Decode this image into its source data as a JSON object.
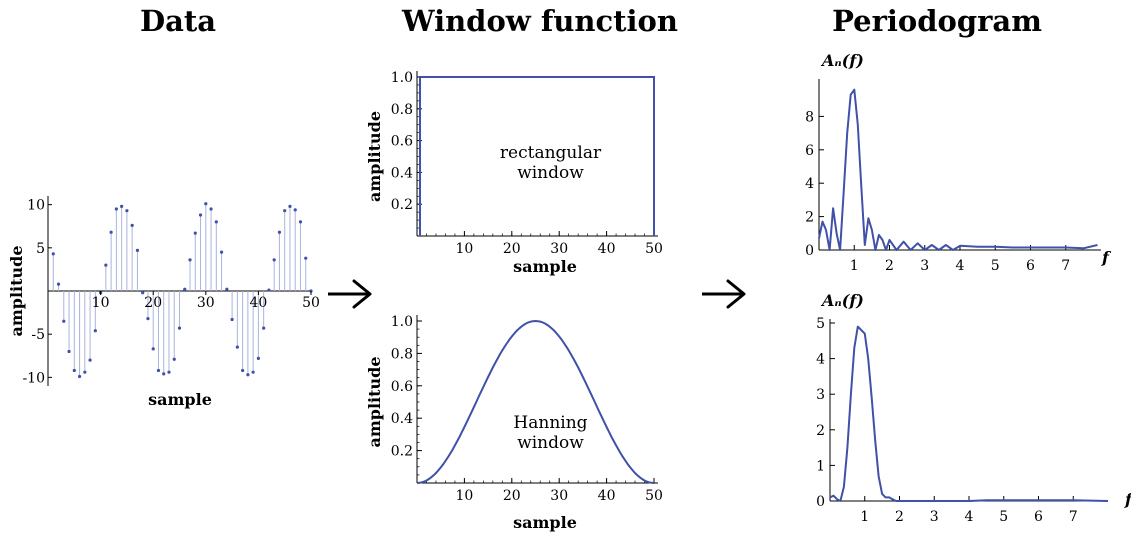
{
  "headings": {
    "data": "Data",
    "window": "Window function",
    "periodogram": "Periodogram"
  },
  "icons": {
    "arrow": "right-arrow-icon"
  },
  "chart_data": [
    {
      "id": "data",
      "type": "scatter",
      "style": "stem",
      "title": "",
      "xlabel": "sample",
      "ylabel": "amplitude",
      "xlim": [
        0,
        50
      ],
      "ylim": [
        -11,
        11
      ],
      "xticks": [
        10,
        20,
        30,
        40,
        50
      ],
      "yticks": [
        10,
        5,
        -5,
        -10
      ],
      "xtick_labels": [
        "10",
        "20",
        "30",
        "40",
        "50"
      ],
      "ytick_labels": [
        "10",
        "5",
        "-5",
        "-10"
      ],
      "color": "#3f51a8",
      "x": [
        1,
        2,
        3,
        4,
        5,
        6,
        7,
        8,
        9,
        10,
        11,
        12,
        13,
        14,
        15,
        16,
        17,
        18,
        19,
        20,
        21,
        22,
        23,
        24,
        25,
        26,
        27,
        28,
        29,
        30,
        31,
        32,
        33,
        34,
        35,
        36,
        37,
        38,
        39,
        40,
        41,
        42,
        43,
        44,
        45,
        46,
        47,
        48,
        49,
        50
      ],
      "y": [
        4.3,
        0.8,
        -3.5,
        -7.0,
        -9.2,
        -9.9,
        -9.4,
        -8.0,
        -4.6,
        -0.2,
        3.0,
        6.8,
        9.5,
        9.8,
        9.3,
        7.6,
        4.7,
        -0.2,
        -3.2,
        -6.7,
        -9.2,
        -9.6,
        -9.4,
        -7.9,
        -4.3,
        0.2,
        3.6,
        6.7,
        8.8,
        10.1,
        9.5,
        8.0,
        4.5,
        0.2,
        -3.3,
        -6.5,
        -9.2,
        -9.7,
        -9.4,
        -7.8,
        -4.3,
        0.1,
        3.6,
        6.8,
        9.3,
        9.8,
        9.4,
        8.0,
        3.8,
        0.0
      ]
    },
    {
      "id": "rect",
      "type": "line",
      "title": "",
      "xlabel": "sample",
      "ylabel": "amplitude",
      "xlim": [
        0,
        50
      ],
      "ylim": [
        0,
        1.0
      ],
      "xticks": [
        10,
        20,
        30,
        40,
        50
      ],
      "yticks": [
        0.2,
        0.4,
        0.6,
        0.8,
        1.0
      ],
      "xtick_labels": [
        "10",
        "20",
        "30",
        "40",
        "50"
      ],
      "ytick_labels": [
        "0.2",
        "0.4",
        "0.6",
        "0.8",
        "1.0"
      ],
      "annotation": [
        "rectangular",
        "window"
      ],
      "color": "#3f51a8",
      "x": [
        0,
        0,
        50,
        50
      ],
      "y": [
        0,
        1,
        1,
        0
      ]
    },
    {
      "id": "hann",
      "type": "line",
      "title": "",
      "xlabel": "sample",
      "ylabel": "amplitude",
      "xlim": [
        0,
        50
      ],
      "ylim": [
        0,
        1.0
      ],
      "xticks": [
        10,
        20,
        30,
        40,
        50
      ],
      "yticks": [
        0.2,
        0.4,
        0.6,
        0.8,
        1.0
      ],
      "xtick_labels": [
        "10",
        "20",
        "30",
        "40",
        "50"
      ],
      "ytick_labels": [
        "0.2",
        "0.4",
        "0.6",
        "0.8",
        "1.0"
      ],
      "annotation": [
        "Hanning",
        "window"
      ],
      "color": "#3f51a8",
      "x": [
        0,
        2.5,
        5,
        7.5,
        10,
        12.5,
        15,
        17.5,
        20,
        22.5,
        25,
        27.5,
        30,
        32.5,
        35,
        37.5,
        40,
        42.5,
        45,
        47.5,
        50
      ],
      "y": [
        0,
        0.02,
        0.1,
        0.21,
        0.35,
        0.5,
        0.65,
        0.79,
        0.9,
        0.98,
        1.0,
        0.98,
        0.9,
        0.79,
        0.65,
        0.5,
        0.35,
        0.21,
        0.1,
        0.02,
        0
      ]
    },
    {
      "id": "pgram_rect",
      "type": "line",
      "title": "",
      "xlabel": "f",
      "ylabel": "Aₙ(f)",
      "xlim": [
        0,
        8
      ],
      "ylim": [
        0,
        10
      ],
      "xticks": [
        1,
        2,
        3,
        4,
        5,
        6,
        7
      ],
      "yticks": [
        0,
        2,
        4,
        6,
        8
      ],
      "xtick_labels": [
        "1",
        "2",
        "3",
        "4",
        "5",
        "6",
        "7"
      ],
      "ytick_labels": [
        "0",
        "2",
        "4",
        "6",
        "8"
      ],
      "color": "#3f51a8",
      "x": [
        0,
        0.1,
        0.2,
        0.3,
        0.4,
        0.5,
        0.6,
        0.7,
        0.8,
        0.9,
        1.0,
        1.1,
        1.2,
        1.3,
        1.4,
        1.5,
        1.6,
        1.7,
        1.8,
        1.9,
        2.0,
        2.2,
        2.4,
        2.6,
        2.8,
        3.0,
        3.2,
        3.4,
        3.6,
        3.8,
        4.0,
        4.5,
        5.0,
        5.5,
        6.0,
        6.5,
        7.0,
        7.5,
        7.9
      ],
      "y": [
        0.7,
        1.7,
        1.2,
        0.0,
        2.5,
        1.0,
        0.0,
        3.5,
        7.0,
        9.3,
        9.6,
        7.5,
        3.8,
        0.3,
        1.9,
        1.2,
        0.0,
        0.9,
        0.6,
        0.0,
        0.6,
        0.0,
        0.5,
        0.0,
        0.4,
        0.0,
        0.3,
        0.0,
        0.3,
        0.0,
        0.25,
        0.2,
        0.2,
        0.15,
        0.15,
        0.15,
        0.15,
        0.1,
        0.3
      ]
    },
    {
      "id": "pgram_hann",
      "type": "line",
      "title": "",
      "xlabel": "f",
      "ylabel": "Aₙ(f)",
      "xlim": [
        0,
        8
      ],
      "ylim": [
        0,
        5
      ],
      "xticks": [
        1,
        2,
        3,
        4,
        5,
        6,
        7
      ],
      "yticks": [
        0,
        1,
        2,
        3,
        4,
        5
      ],
      "xtick_labels": [
        "1",
        "2",
        "3",
        "4",
        "5",
        "6",
        "7"
      ],
      "ytick_labels": [
        "0",
        "1",
        "2",
        "3",
        "4",
        "5"
      ],
      "color": "#3f51a8",
      "x": [
        0,
        0.1,
        0.2,
        0.3,
        0.4,
        0.5,
        0.6,
        0.7,
        0.8,
        0.9,
        1.0,
        1.1,
        1.2,
        1.3,
        1.4,
        1.5,
        1.6,
        1.7,
        1.8,
        1.9,
        2.0,
        3.0,
        4.0,
        4.5,
        5.0,
        6.0,
        7.0,
        8.0
      ],
      "y": [
        0.1,
        0.15,
        0.05,
        0.0,
        0.4,
        1.5,
        3.0,
        4.3,
        4.9,
        4.8,
        4.7,
        4.0,
        2.9,
        1.7,
        0.7,
        0.2,
        0.1,
        0.1,
        0.05,
        0.0,
        0.0,
        0.0,
        0.0,
        0.02,
        0.02,
        0.02,
        0.02,
        0.0
      ]
    }
  ]
}
